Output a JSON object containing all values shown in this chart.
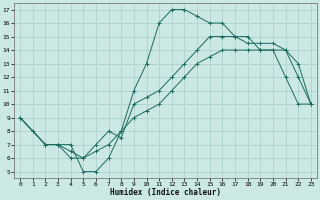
{
  "xlabel": "Humidex (Indice chaleur)",
  "bg_color": "#cce8e4",
  "grid_color": "#aacfcb",
  "line_color": "#1a6b60",
  "xlim": [
    -0.5,
    23.5
  ],
  "ylim": [
    4.5,
    17.5
  ],
  "xticks": [
    0,
    1,
    2,
    3,
    4,
    5,
    6,
    7,
    8,
    9,
    10,
    11,
    12,
    13,
    14,
    15,
    16,
    17,
    18,
    19,
    20,
    21,
    22,
    23
  ],
  "yticks": [
    5,
    6,
    7,
    8,
    9,
    10,
    11,
    12,
    13,
    14,
    15,
    16,
    17
  ],
  "curve1_x": [
    0,
    1,
    2,
    3,
    4,
    5,
    6,
    7,
    8,
    9,
    10,
    11,
    12,
    13,
    14,
    15,
    16,
    17,
    18,
    19,
    20,
    21,
    22,
    23
  ],
  "curve1_y": [
    9,
    8,
    7,
    7,
    7,
    5,
    5,
    6,
    8,
    11,
    13,
    16,
    17,
    17,
    16.5,
    16,
    16,
    15,
    15,
    14,
    14,
    12,
    10,
    10
  ],
  "curve2_x": [
    0,
    2,
    3,
    4,
    5,
    6,
    7,
    8,
    9,
    10,
    11,
    12,
    13,
    14,
    15,
    16,
    17,
    18,
    19,
    20,
    21,
    22,
    23
  ],
  "curve2_y": [
    9,
    7,
    7,
    6,
    6,
    7,
    8,
    7.5,
    10,
    10.5,
    11,
    12,
    13,
    14,
    15,
    15,
    15,
    14.5,
    14.5,
    14.5,
    14,
    12,
    10
  ],
  "curve3_x": [
    0,
    2,
    3,
    4,
    5,
    6,
    7,
    8,
    9,
    10,
    11,
    12,
    13,
    14,
    15,
    16,
    17,
    18,
    19,
    20,
    21,
    22,
    23
  ],
  "curve3_y": [
    9,
    7,
    7,
    6.5,
    6,
    6.5,
    7,
    8,
    9,
    9.5,
    10,
    11,
    12,
    13,
    13.5,
    14,
    14,
    14,
    14,
    14,
    14,
    13,
    10
  ]
}
